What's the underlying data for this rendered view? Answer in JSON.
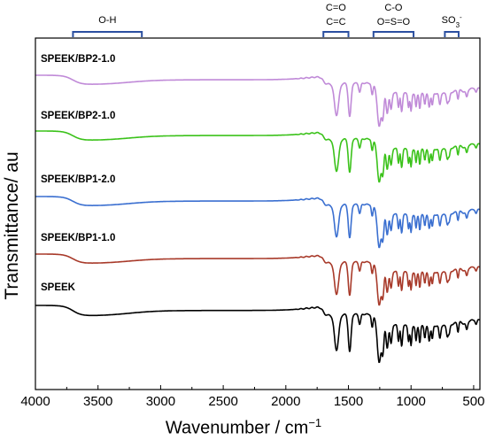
{
  "chart_data": {
    "type": "line",
    "xlabel": "Wavenumber / cm",
    "xlabel_superscript": "−1",
    "ylabel": "Transmittance/ au",
    "xlim": [
      4000,
      450
    ],
    "x_reversed": true,
    "x_ticks": [
      "4000",
      "3500",
      "3000",
      "2500",
      "2000",
      "1500",
      "1000",
      "500"
    ],
    "grid": false,
    "series": [
      {
        "name": "SPEEK/BP2-1.0",
        "label": "SPEEK/BP2-1.0",
        "color": "#c08ad8",
        "offset": 4
      },
      {
        "name": "SPEEK/BP2-1.0",
        "label": "SPEEK/BP2-1.0",
        "color": "#3bc21a",
        "offset": 3
      },
      {
        "name": "SPEEK/BP1-2.0",
        "label": "SPEEK/BP1-2.0",
        "color": "#3a6fd0",
        "offset": 2
      },
      {
        "name": "SPEEK/BP1-1.0",
        "label": "SPEEK/BP1-1.0",
        "color": "#a83a2a",
        "offset": 1
      },
      {
        "name": "SPEEK",
        "label": "SPEEK",
        "color": "#000000",
        "offset": 0
      }
    ],
    "band_annotations": [
      {
        "label": "O-H",
        "range": [
          3700,
          3150
        ]
      },
      {
        "label": "C=O",
        "label2": "C=C",
        "range": [
          1700,
          1500
        ]
      },
      {
        "label": "C-O",
        "label2": "O=S=O",
        "range": [
          1300,
          980
        ]
      },
      {
        "label": "SO3-",
        "text": "SO",
        "sub": "3",
        "sup": "-",
        "range": [
          730,
          620
        ]
      }
    ]
  }
}
